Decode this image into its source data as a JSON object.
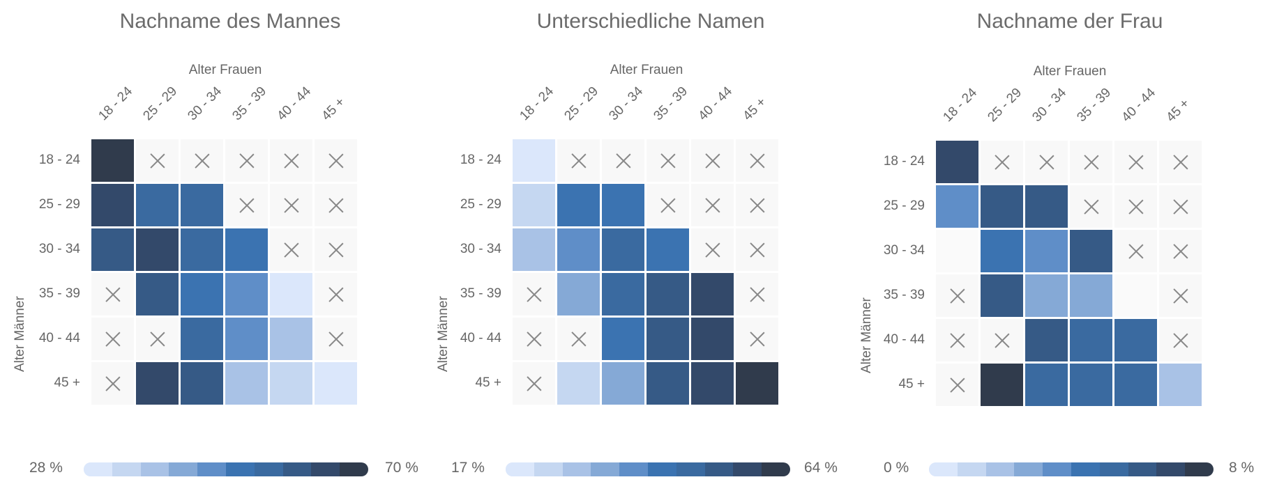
{
  "panels": [
    {
      "title": "Nachname des Mannes",
      "xlabel": "Alter Frauen",
      "ylabel": "Alter Männer",
      "legend_min": "28 %",
      "legend_max": "70 %"
    },
    {
      "title": "Unterschiedliche Namen",
      "xlabel": "Alter Frauen",
      "ylabel": "Alter Männer",
      "legend_min": "17 %",
      "legend_max": "64 %"
    },
    {
      "title": "Nachname der Frau",
      "xlabel": "Alter Frauen",
      "ylabel": "Alter Männer",
      "legend_min": "0 %",
      "legend_max": "8 %"
    }
  ],
  "categories": [
    "18 - 24",
    "25 - 29",
    "30 - 34",
    "35 - 39",
    "40 - 44",
    "45 +"
  ],
  "palette": [
    "#dbe7fb",
    "#c5d7f1",
    "#a9c2e6",
    "#85a9d6",
    "#5f8ec8",
    "#3b73b1",
    "#3a6aa0",
    "#365a86",
    "#33496a",
    "#303b4c"
  ],
  "chart_data": [
    {
      "type": "heatmap",
      "title": "Nachname des Mannes",
      "xlabel": "Alter Frauen",
      "ylabel": "Alter Männer",
      "x_categories": [
        "18 - 24",
        "25 - 29",
        "30 - 34",
        "35 - 39",
        "40 - 44",
        "45 +"
      ],
      "y_categories": [
        "18 - 24",
        "25 - 29",
        "30 - 34",
        "35 - 39",
        "40 - 44",
        "45 +"
      ],
      "range": [
        28,
        70
      ],
      "unit": "%",
      "values": [
        [
          70,
          null,
          null,
          null,
          null,
          null
        ],
        [
          65,
          54,
          55,
          null,
          null,
          null
        ],
        [
          60,
          64,
          56,
          53,
          null,
          null
        ],
        [
          null,
          62,
          52,
          46,
          30,
          null
        ],
        [
          null,
          null,
          54,
          45,
          38,
          null
        ],
        [
          null,
          64,
          60,
          37,
          32,
          30
        ]
      ]
    },
    {
      "type": "heatmap",
      "title": "Unterschiedliche Namen",
      "xlabel": "Alter Frauen",
      "ylabel": "Alter Männer",
      "x_categories": [
        "18 - 24",
        "25 - 29",
        "30 - 34",
        "35 - 39",
        "40 - 44",
        "45 +"
      ],
      "y_categories": [
        "18 - 24",
        "25 - 29",
        "30 - 34",
        "35 - 39",
        "40 - 44",
        "45 +"
      ],
      "range": [
        17,
        64
      ],
      "unit": "%",
      "values": [
        [
          18,
          null,
          null,
          null,
          null,
          null
        ],
        [
          22,
          42,
          41,
          null,
          null,
          null
        ],
        [
          27,
          36,
          46,
          44,
          null,
          null
        ],
        [
          null,
          35,
          50,
          51,
          57,
          null
        ],
        [
          null,
          null,
          44,
          51,
          60,
          null
        ],
        [
          null,
          22,
          35,
          54,
          59,
          64
        ]
      ]
    },
    {
      "type": "heatmap",
      "title": "Nachname der Frau",
      "xlabel": "Alter Frauen",
      "ylabel": "Alter Männer",
      "x_categories": [
        "18 - 24",
        "25 - 29",
        "30 - 34",
        "35 - 39",
        "40 - 44",
        "45 +"
      ],
      "y_categories": [
        "18 - 24",
        "25 - 29",
        "30 - 34",
        "35 - 39",
        "40 - 44",
        "45 +"
      ],
      "range": [
        0,
        8
      ],
      "unit": "%",
      "values": [
        [
          7,
          null,
          null,
          null,
          null,
          null
        ],
        [
          3.5,
          6.5,
          5.8,
          null,
          null,
          null
        ],
        [
          0,
          4,
          3.6,
          5.8,
          null,
          null
        ],
        [
          null,
          5.8,
          2.6,
          2.9,
          0,
          null
        ],
        [
          null,
          null,
          6.5,
          5,
          5,
          null
        ],
        [
          null,
          7.8,
          5,
          5.2,
          5.3,
          1.8
        ]
      ]
    }
  ]
}
